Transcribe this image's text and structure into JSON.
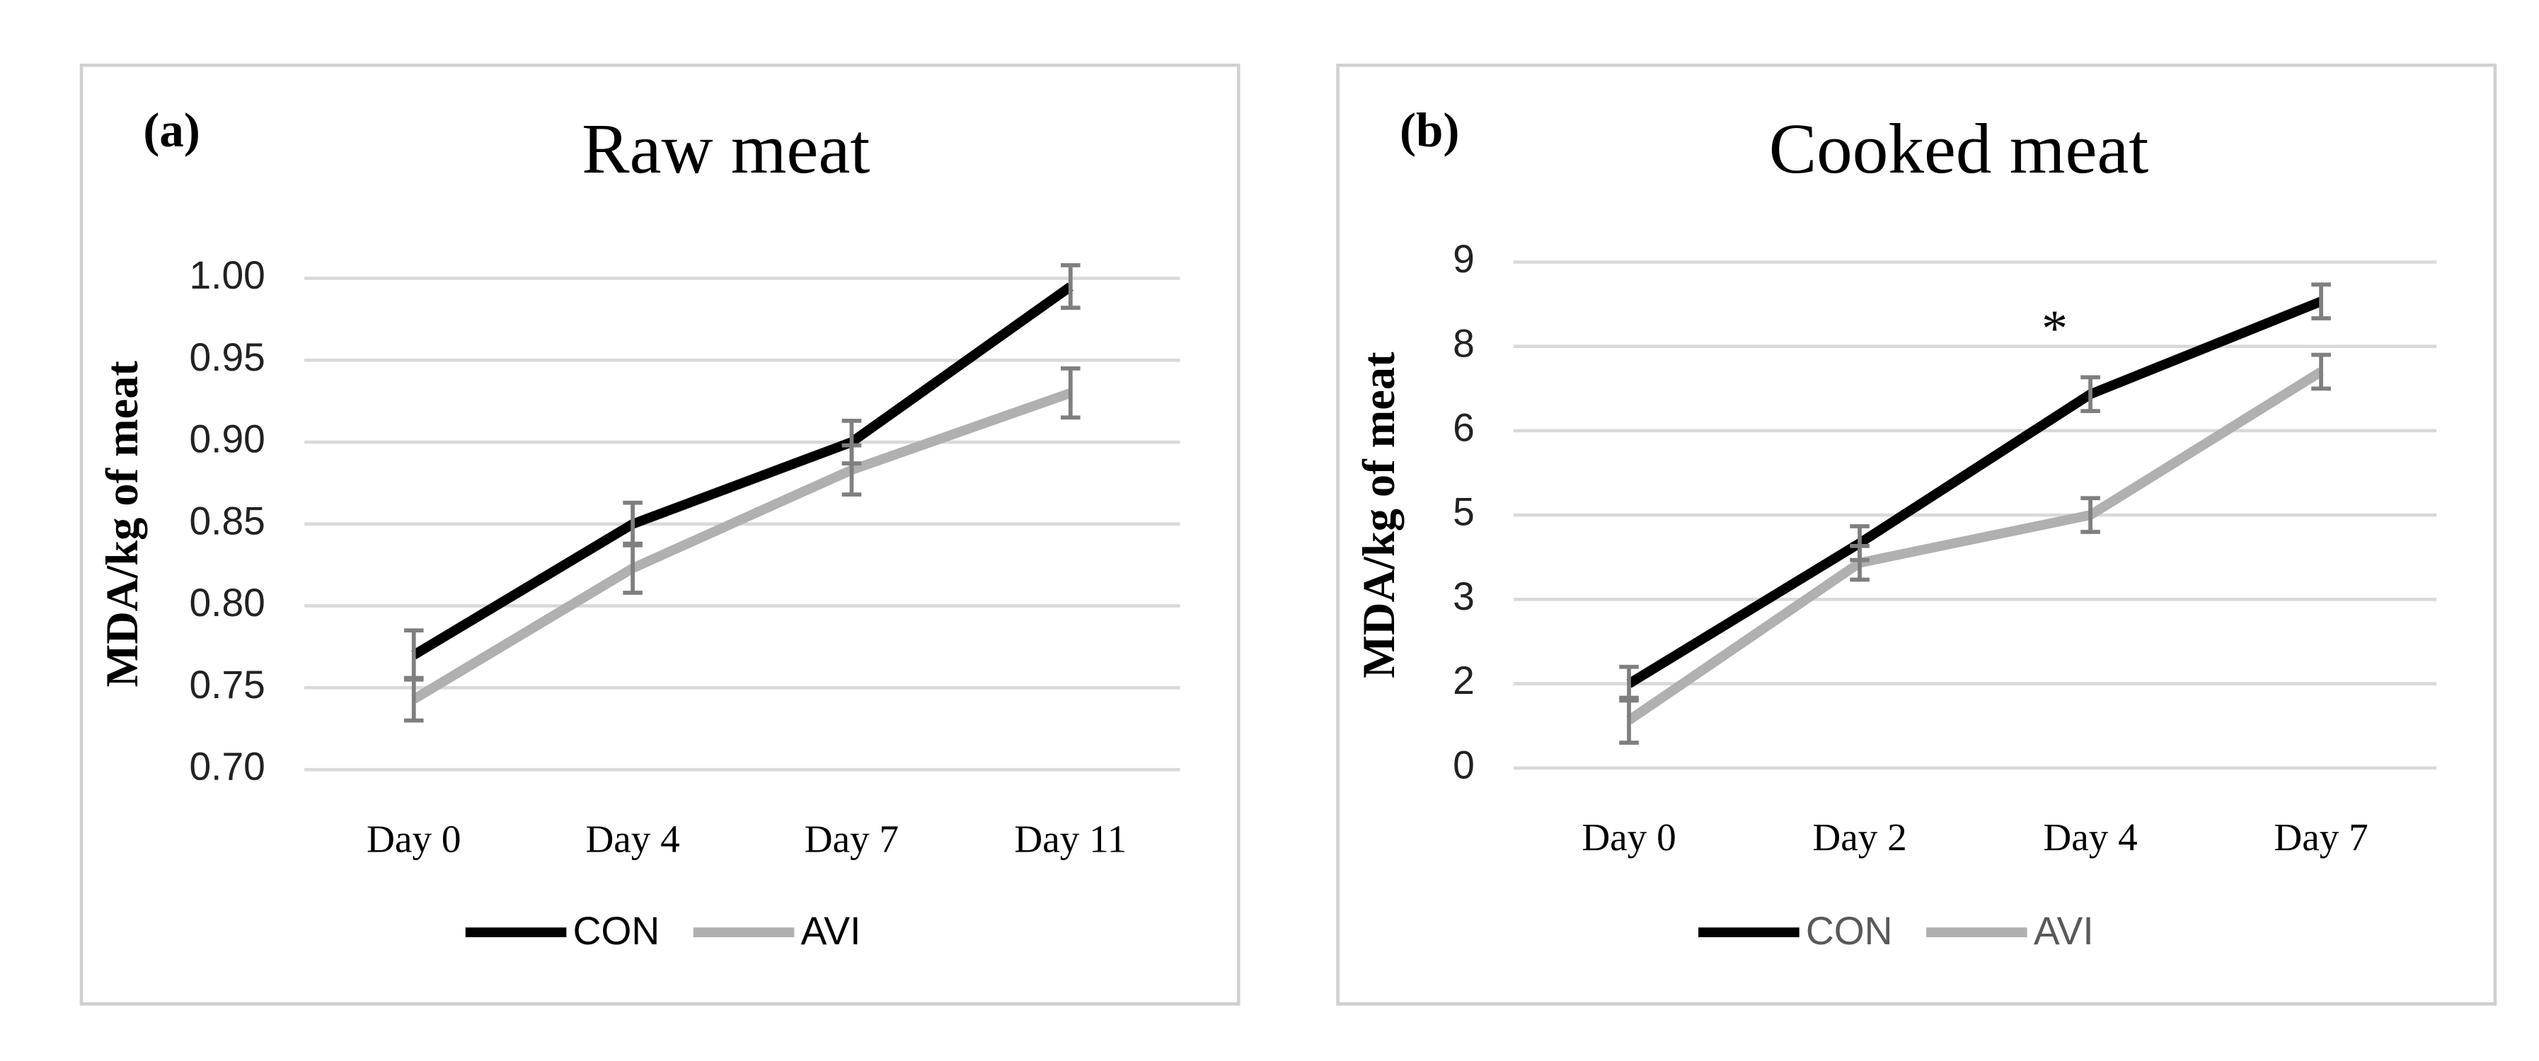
{
  "chart_data": [
    {
      "type": "line",
      "panel_label": "(a)",
      "title": "Raw meat",
      "y_label": "MDA/kg of meat",
      "categories": [
        "Day 0",
        "Day 4",
        "Day 7",
        "Day 11"
      ],
      "series": [
        {
          "name": "CON",
          "color": "#000000",
          "values": [
            0.77,
            0.85,
            0.9,
            0.995
          ],
          "errors": [
            0.015,
            0.013,
            0.013,
            0.013
          ]
        },
        {
          "name": "AVI",
          "color": "#b0b0b0",
          "values": [
            0.743,
            0.823,
            0.883,
            0.93
          ],
          "errors": [
            0.013,
            0.015,
            0.015,
            0.015
          ]
        }
      ],
      "ylim": [
        0.7,
        1.0
      ],
      "yticks": [
        {
          "value": 0.7,
          "label": "0.70"
        },
        {
          "value": 0.75,
          "label": "0.75"
        },
        {
          "value": 0.8,
          "label": "0.80"
        },
        {
          "value": 0.85,
          "label": "0.85"
        },
        {
          "value": 0.9,
          "label": "0.90"
        },
        {
          "value": 0.95,
          "label": "0.95"
        },
        {
          "value": 1.0,
          "label": "1.00"
        }
      ],
      "grid": true,
      "legend_text_color": "#000000"
    },
    {
      "type": "line",
      "panel_label": "(b)",
      "title": "Cooked meat",
      "y_label": "MDA/kg of meat",
      "categories": [
        "Day 0",
        "Day 2",
        "Day 4",
        "Day 7"
      ],
      "series": [
        {
          "name": "CON",
          "color": "#000000",
          "values": [
            1.5,
            4.0,
            6.65,
            8.3
          ],
          "errors": [
            0.3,
            0.3,
            0.3,
            0.3
          ]
        },
        {
          "name": "AVI",
          "color": "#b0b0b0",
          "values": [
            0.85,
            3.65,
            4.5,
            7.05
          ],
          "errors": [
            0.4,
            0.3,
            0.3,
            0.3
          ]
        }
      ],
      "ylim": [
        0,
        9
      ],
      "yticks": [
        0,
        {
          "value": 1.5,
          "label": "2"
        },
        3,
        {
          "value": 4.5,
          "label": "5"
        },
        6,
        {
          "value": 7.5,
          "label": "8"
        },
        9
      ],
      "annotations": [
        {
          "text": "*",
          "category": "Day 4"
        }
      ],
      "grid": true,
      "legend_text_color": "#595959"
    }
  ]
}
